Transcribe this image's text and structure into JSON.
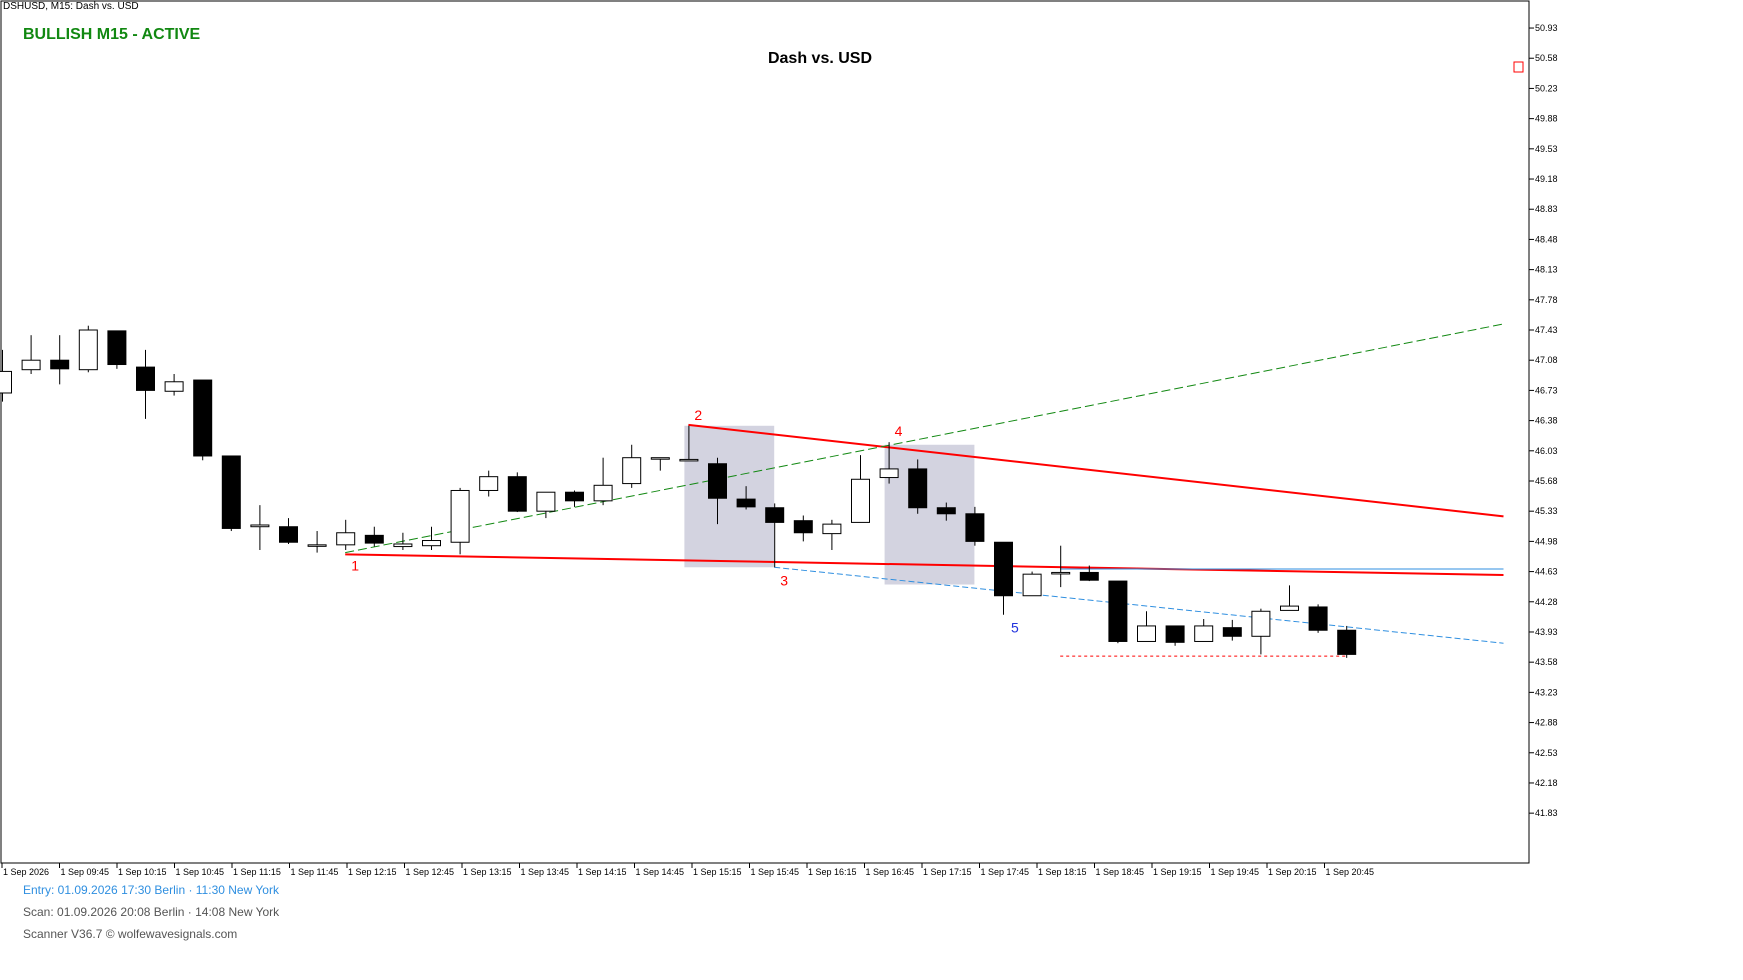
{
  "header": {
    "symbol_line": "DSHUSD, M15:  Dash vs. USD",
    "status": "BULLISH M15 - ACTIVE",
    "title": "Dash vs. USD"
  },
  "footer": {
    "entry": "Entry: 01.09.2026   17:30 Berlin  ·  11:30 New York",
    "scan": "Scan:  01.09.2026  20:08 Berlin  ·  14:08 New York",
    "scanner": "Scanner V36.7   © wolfewavesignals.com"
  },
  "colors": {
    "status": "#118811",
    "pattern_line": "#ff0000",
    "target_line": "#2f8fe0",
    "trend_line": "#118811",
    "box": "#d3d3e0"
  },
  "chart_data": {
    "type": "candlestick",
    "title": "Dash vs. USD",
    "ylim": [
      41.6,
      51.0
    ],
    "y_ticks": [
      "50.93",
      "50.58",
      "50.23",
      "49.88",
      "49.53",
      "49.18",
      "48.83",
      "48.48",
      "48.13",
      "47.78",
      "47.43",
      "47.08",
      "46.73",
      "46.38",
      "46.03",
      "45.68",
      "45.33",
      "44.98",
      "44.63",
      "44.28",
      "43.93",
      "43.58",
      "43.23",
      "42.88",
      "42.53",
      "42.18",
      "41.83"
    ],
    "x_labels": [
      "1 Sep 2026",
      "1 Sep 09:45",
      "1 Sep 10:15",
      "1 Sep 10:45",
      "1 Sep 11:15",
      "1 Sep 11:45",
      "1 Sep 12:15",
      "1 Sep 12:45",
      "1 Sep 13:15",
      "1 Sep 13:45",
      "1 Sep 14:15",
      "1 Sep 14:45",
      "1 Sep 15:15",
      "1 Sep 15:45",
      "1 Sep 16:15",
      "1 Sep 16:45",
      "1 Sep 17:15",
      "1 Sep 17:45",
      "1 Sep 18:15",
      "1 Sep 18:45",
      "1 Sep 19:15",
      "1 Sep 19:45",
      "1 Sep 20:15",
      "1 Sep 20:45"
    ],
    "candles": [
      {
        "o": 46.7,
        "h": 47.2,
        "l": 46.6,
        "c": 46.95
      },
      {
        "o": 46.97,
        "h": 47.37,
        "l": 46.92,
        "c": 47.08
      },
      {
        "o": 47.08,
        "h": 47.37,
        "l": 46.8,
        "c": 46.98
      },
      {
        "o": 46.97,
        "h": 47.48,
        "l": 46.94,
        "c": 47.43
      },
      {
        "o": 47.42,
        "h": 47.42,
        "l": 46.98,
        "c": 47.03
      },
      {
        "o": 47.0,
        "h": 47.2,
        "l": 46.4,
        "c": 46.73
      },
      {
        "o": 46.72,
        "h": 46.92,
        "l": 46.67,
        "c": 46.83
      },
      {
        "o": 46.85,
        "h": 46.85,
        "l": 45.92,
        "c": 45.97
      },
      {
        "o": 45.97,
        "h": 45.97,
        "l": 45.1,
        "c": 45.13
      },
      {
        "o": 45.15,
        "h": 45.4,
        "l": 44.88,
        "c": 45.17
      },
      {
        "o": 45.15,
        "h": 45.25,
        "l": 44.95,
        "c": 44.97
      },
      {
        "o": 44.93,
        "h": 45.1,
        "l": 44.85,
        "c": 44.94
      },
      {
        "o": 44.94,
        "h": 45.23,
        "l": 44.88,
        "c": 45.08
      },
      {
        "o": 45.05,
        "h": 45.15,
        "l": 44.92,
        "c": 44.96
      },
      {
        "o": 44.92,
        "h": 45.08,
        "l": 44.88,
        "c": 44.95
      },
      {
        "o": 44.93,
        "h": 45.15,
        "l": 44.88,
        "c": 44.99
      },
      {
        "o": 44.97,
        "h": 45.6,
        "l": 44.83,
        "c": 45.57
      },
      {
        "o": 45.57,
        "h": 45.8,
        "l": 45.5,
        "c": 45.73
      },
      {
        "o": 45.73,
        "h": 45.78,
        "l": 45.32,
        "c": 45.33
      },
      {
        "o": 45.33,
        "h": 45.55,
        "l": 45.25,
        "c": 45.55
      },
      {
        "o": 45.55,
        "h": 45.57,
        "l": 45.38,
        "c": 45.45
      },
      {
        "o": 45.45,
        "h": 45.95,
        "l": 45.4,
        "c": 45.63
      },
      {
        "o": 45.65,
        "h": 46.1,
        "l": 45.6,
        "c": 45.95
      },
      {
        "o": 45.95,
        "h": 45.95,
        "l": 45.8,
        "c": 45.95
      },
      {
        "o": 45.93,
        "h": 46.32,
        "l": 45.93,
        "c": 45.93
      },
      {
        "o": 45.88,
        "h": 45.95,
        "l": 45.18,
        "c": 45.48
      },
      {
        "o": 45.47,
        "h": 45.62,
        "l": 45.35,
        "c": 45.38
      },
      {
        "o": 45.37,
        "h": 45.42,
        "l": 44.68,
        "c": 45.2
      },
      {
        "o": 45.22,
        "h": 45.28,
        "l": 44.98,
        "c": 45.08
      },
      {
        "o": 45.07,
        "h": 45.23,
        "l": 44.88,
        "c": 45.18
      },
      {
        "o": 45.2,
        "h": 45.98,
        "l": 45.2,
        "c": 45.7
      },
      {
        "o": 45.72,
        "h": 46.13,
        "l": 45.65,
        "c": 45.82
      },
      {
        "o": 45.82,
        "h": 45.93,
        "l": 45.3,
        "c": 45.37
      },
      {
        "o": 45.37,
        "h": 45.43,
        "l": 45.22,
        "c": 45.3
      },
      {
        "o": 45.3,
        "h": 45.38,
        "l": 44.93,
        "c": 44.98
      },
      {
        "o": 44.97,
        "h": 44.97,
        "l": 44.13,
        "c": 44.35
      },
      {
        "o": 44.35,
        "h": 44.63,
        "l": 44.35,
        "c": 44.6
      },
      {
        "o": 44.62,
        "h": 44.93,
        "l": 44.45,
        "c": 44.62
      },
      {
        "o": 44.62,
        "h": 44.7,
        "l": 44.52,
        "c": 44.53
      },
      {
        "o": 44.52,
        "h": 44.52,
        "l": 43.8,
        "c": 43.82
      },
      {
        "o": 43.82,
        "h": 44.17,
        "l": 43.82,
        "c": 44.0
      },
      {
        "o": 44.0,
        "h": 44.0,
        "l": 43.77,
        "c": 43.81
      },
      {
        "o": 43.82,
        "h": 44.08,
        "l": 43.82,
        "c": 44.0
      },
      {
        "o": 43.98,
        "h": 44.07,
        "l": 43.83,
        "c": 43.88
      },
      {
        "o": 43.88,
        "h": 44.2,
        "l": 43.67,
        "c": 44.17
      },
      {
        "o": 44.18,
        "h": 44.47,
        "l": 44.18,
        "c": 44.23
      },
      {
        "o": 44.22,
        "h": 44.25,
        "l": 43.92,
        "c": 43.95
      },
      {
        "o": 43.95,
        "h": 44.0,
        "l": 43.63,
        "c": 43.67
      }
    ],
    "wave_points": [
      {
        "label": "1",
        "candle": 12,
        "price": 44.85
      },
      {
        "label": "2",
        "candle": 24,
        "price": 46.32
      },
      {
        "label": "3",
        "candle": 27,
        "price": 44.68
      },
      {
        "label": "4",
        "candle": 31,
        "price": 46.13
      },
      {
        "label": "5",
        "candle": 35,
        "price": 44.13
      }
    ],
    "lines": [
      {
        "name": "1-3",
        "from": [
          12,
          44.83
        ],
        "to": [
          52.5,
          44.59
        ],
        "color": "#ff0000"
      },
      {
        "name": "2-4",
        "from": [
          24,
          46.33
        ],
        "to": [
          52.5,
          45.27
        ],
        "color": "#ff0000"
      },
      {
        "name": "1-4",
        "from": [
          12,
          44.85
        ],
        "to": [
          52.5,
          47.5
        ],
        "color": "#118811"
      },
      {
        "name": "3-5",
        "from": [
          27,
          44.68
        ],
        "to": [
          52.5,
          43.8
        ],
        "color": "#2f8fe0"
      },
      {
        "name": "level",
        "from": [
          37,
          44.66
        ],
        "to": [
          52.5,
          44.66
        ],
        "color": "#2f8fe0"
      },
      {
        "name": "stop",
        "from": [
          37,
          43.65
        ],
        "to": [
          47,
          43.65
        ],
        "color": "#ff0000"
      }
    ],
    "boxes": [
      {
        "from_candle": 24,
        "to_candle": 27,
        "top": 46.32,
        "bottom": 44.68
      },
      {
        "from_candle": 31,
        "to_candle": 34,
        "top": 46.1,
        "bottom": 44.48
      }
    ],
    "grid": false
  }
}
